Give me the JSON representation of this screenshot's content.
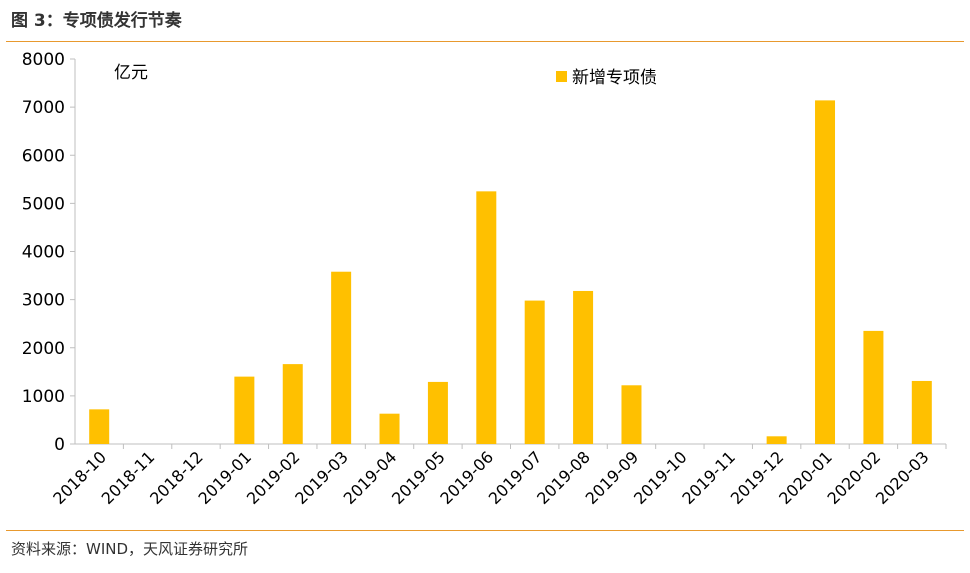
{
  "figure": {
    "title": "图 3：专项债发行节奏",
    "source": "资料来源：WIND，天风证券研究所"
  },
  "chart_data": {
    "type": "bar",
    "unit_label": "亿元",
    "categories": [
      "2018-10",
      "2018-11",
      "2018-12",
      "2019-01",
      "2019-02",
      "2019-03",
      "2019-04",
      "2019-05",
      "2019-06",
      "2019-07",
      "2019-08",
      "2019-09",
      "2019-10",
      "2019-11",
      "2019-12",
      "2020-01",
      "2020-02",
      "2020-03"
    ],
    "series": [
      {
        "name": "新增专项债",
        "color": "#ffc000",
        "values": [
          720,
          0,
          0,
          1400,
          1660,
          3580,
          630,
          1290,
          5250,
          2980,
          3180,
          1220,
          0,
          0,
          160,
          7140,
          2350,
          1310
        ]
      }
    ],
    "ylim": [
      0,
      8000
    ],
    "yticks": [
      0,
      1000,
      2000,
      3000,
      4000,
      5000,
      6000,
      7000,
      8000
    ],
    "grid": false,
    "legend_position": "top-right"
  }
}
